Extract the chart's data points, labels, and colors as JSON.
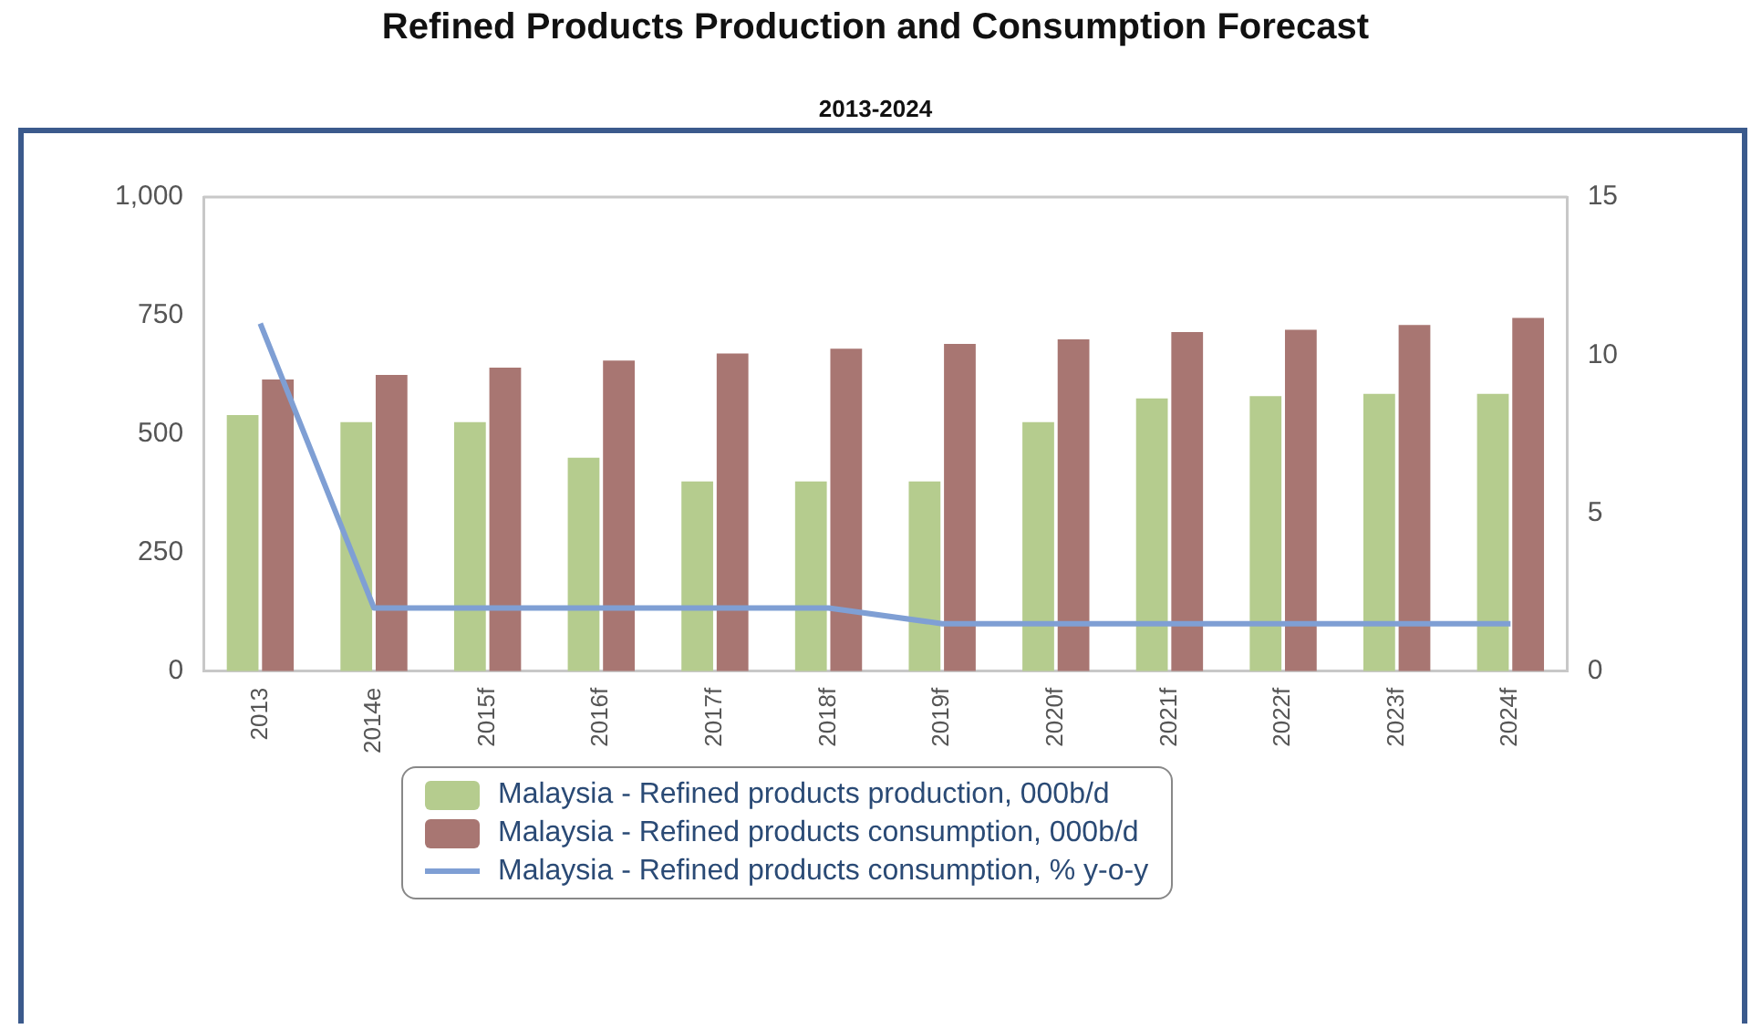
{
  "chart_data": {
    "type": "bar",
    "title": "Refined Products Production and Consumption Forecast",
    "subtitle": "2013-2024",
    "categories": [
      "2013",
      "2014e",
      "2015f",
      "2016f",
      "2017f",
      "2018f",
      "2019f",
      "2020f",
      "2021f",
      "2022f",
      "2023f",
      "2024f"
    ],
    "series": [
      {
        "name": "Malaysia - Refined products production, 000b/d",
        "color": "#b5cc8e",
        "values": [
          540,
          525,
          525,
          450,
          400,
          400,
          400,
          525,
          575,
          580,
          585,
          585
        ]
      },
      {
        "name": "Malaysia - Refined products consumption, 000b/d",
        "color": "#a87672",
        "values": [
          615,
          625,
          640,
          655,
          670,
          680,
          690,
          700,
          715,
          720,
          730,
          745
        ]
      },
      {
        "name": "Malaysia - Refined products consumption, % y-o-y",
        "type": "line",
        "axis": "y2",
        "color": "#7f9fd4",
        "values": [
          11,
          2,
          2,
          2,
          2,
          2,
          1.5,
          1.5,
          1.5,
          1.5,
          1.5,
          1.5
        ]
      }
    ],
    "ylim": [
      0,
      1000
    ],
    "yticks": [
      {
        "value": 0,
        "label": "0"
      },
      {
        "value": 250,
        "label": "250"
      },
      {
        "value": 500,
        "label": "500"
      },
      {
        "value": 750,
        "label": "750"
      },
      {
        "value": 1000,
        "label": "1,000"
      }
    ],
    "y2lim": [
      0,
      15
    ],
    "y2ticks": [
      0,
      5,
      10,
      15
    ],
    "grid": false,
    "legend": "bottom",
    "marker": "none"
  }
}
